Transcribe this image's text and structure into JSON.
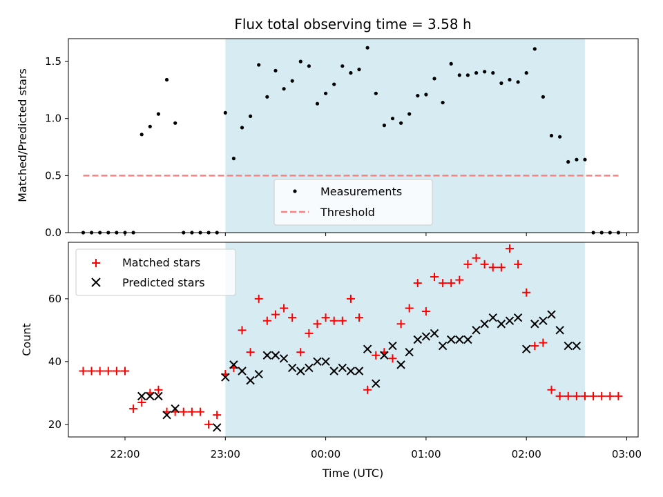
{
  "chart_data": [
    {
      "type": "scatter",
      "title": "Flux total observing time = 3.58 h",
      "xlabel": "",
      "ylabel": "Matched/Predicted stars",
      "ylim": [
        0,
        1.7
      ],
      "yticks": [
        "0.0",
        "0.5",
        "1.0",
        "1.5"
      ],
      "ytick_values": [
        0,
        0.5,
        1.0,
        1.5
      ],
      "grid": false,
      "legend_position": "lower-center",
      "shaded_span": {
        "start": "23:00",
        "end": "02:35",
        "color": "#add8e6"
      },
      "series": [
        {
          "name": "Measurements",
          "marker": "dot",
          "color": "#000000",
          "x": [
            "21:35",
            "21:40",
            "21:45",
            "21:50",
            "21:55",
            "22:00",
            "22:05",
            "22:10",
            "22:15",
            "22:20",
            "22:25",
            "22:30",
            "22:35",
            "22:40",
            "22:45",
            "22:50",
            "22:55",
            "23:00",
            "23:05",
            "23:10",
            "23:15",
            "23:20",
            "23:25",
            "23:30",
            "23:35",
            "23:40",
            "23:45",
            "23:50",
            "23:55",
            "00:00",
            "00:05",
            "00:10",
            "00:15",
            "00:20",
            "00:25",
            "00:30",
            "00:35",
            "00:40",
            "00:45",
            "00:50",
            "00:55",
            "01:00",
            "01:05",
            "01:10",
            "01:15",
            "01:20",
            "01:25",
            "01:30",
            "01:35",
            "01:40",
            "01:45",
            "01:50",
            "01:55",
            "02:00",
            "02:05",
            "02:10",
            "02:15",
            "02:20",
            "02:25",
            "02:30",
            "02:35",
            "02:40",
            "02:45",
            "02:50",
            "02:55"
          ],
          "y": [
            0,
            0,
            0,
            0,
            0,
            0,
            0,
            0.86,
            0.93,
            1.04,
            1.34,
            0.96,
            0,
            0,
            0,
            0,
            0,
            1.05,
            0.65,
            0.92,
            1.02,
            1.47,
            1.19,
            1.42,
            1.26,
            1.33,
            1.5,
            1.46,
            1.13,
            1.22,
            1.3,
            1.46,
            1.4,
            1.43,
            1.62,
            1.22,
            0.94,
            1.0,
            0.96,
            1.04,
            1.2,
            1.21,
            1.35,
            1.14,
            1.48,
            1.38,
            1.38,
            1.4,
            1.41,
            1.4,
            1.31,
            1.34,
            1.32,
            1.4,
            1.61,
            1.19,
            0.85,
            0.84,
            0.62,
            0.64,
            0.64,
            0,
            0,
            0,
            0
          ]
        },
        {
          "name": "Threshold",
          "marker": "dashed-line",
          "color": "#ff7f7f",
          "x": [
            "21:35",
            "02:55"
          ],
          "y": [
            0.5,
            0.5
          ]
        }
      ]
    },
    {
      "type": "scatter",
      "title": "",
      "xlabel": "Time (UTC)",
      "ylabel": "Count",
      "ylim": [
        16,
        78
      ],
      "yticks": [
        "20",
        "40",
        "60"
      ],
      "ytick_values": [
        20,
        40,
        60
      ],
      "xticks": [
        "22:00",
        "23:00",
        "00:00",
        "01:00",
        "02:00",
        "03:00"
      ],
      "xtick_values": [
        "22:00",
        "23:00",
        "00:00",
        "01:00",
        "02:00",
        "03:00"
      ],
      "grid": false,
      "legend_position": "upper-left",
      "shaded_span": {
        "start": "23:00",
        "end": "02:35",
        "color": "#add8e6"
      },
      "series": [
        {
          "name": "Matched stars",
          "marker": "plus",
          "color": "#ff0000",
          "x": [
            "21:35",
            "21:40",
            "21:45",
            "21:50",
            "21:55",
            "22:00",
            "22:05",
            "22:10",
            "22:15",
            "22:20",
            "22:25",
            "22:30",
            "22:35",
            "22:40",
            "22:45",
            "22:50",
            "22:55",
            "23:00",
            "23:05",
            "23:10",
            "23:15",
            "23:20",
            "23:25",
            "23:30",
            "23:35",
            "23:40",
            "23:45",
            "23:50",
            "23:55",
            "00:00",
            "00:05",
            "00:10",
            "00:15",
            "00:20",
            "00:25",
            "00:30",
            "00:35",
            "00:40",
            "00:45",
            "00:50",
            "00:55",
            "01:00",
            "01:05",
            "01:10",
            "01:15",
            "01:20",
            "01:25",
            "01:30",
            "01:35",
            "01:40",
            "01:45",
            "01:50",
            "01:55",
            "02:00",
            "02:05",
            "02:10",
            "02:15",
            "02:20",
            "02:25",
            "02:30",
            "02:35",
            "02:40",
            "02:45",
            "02:50",
            "02:55"
          ],
          "y": [
            37,
            37,
            37,
            37,
            37,
            37,
            25,
            27,
            30,
            31,
            24,
            24,
            24,
            24,
            24,
            20,
            23,
            36,
            38,
            50,
            43,
            60,
            53,
            55,
            57,
            54,
            43,
            49,
            52,
            54,
            53,
            53,
            60,
            54,
            31,
            42,
            43,
            41,
            52,
            57,
            65,
            56,
            67,
            65,
            65,
            66,
            71,
            73,
            71,
            70,
            70,
            76,
            71,
            62,
            45,
            46,
            31,
            29,
            29,
            29,
            29,
            29,
            29,
            29,
            29
          ]
        },
        {
          "name": "Predicted stars",
          "marker": "x",
          "color": "#000000",
          "x": [
            "22:10",
            "22:15",
            "22:20",
            "22:25",
            "22:30",
            "22:55",
            "23:00",
            "23:05",
            "23:10",
            "23:15",
            "23:20",
            "23:25",
            "23:30",
            "23:35",
            "23:40",
            "23:45",
            "23:50",
            "23:55",
            "00:00",
            "00:05",
            "00:10",
            "00:15",
            "00:20",
            "00:25",
            "00:30",
            "00:35",
            "00:40",
            "00:45",
            "00:50",
            "00:55",
            "01:00",
            "01:05",
            "01:10",
            "01:15",
            "01:20",
            "01:25",
            "01:30",
            "01:35",
            "01:40",
            "01:45",
            "01:50",
            "01:55",
            "02:00",
            "02:05",
            "02:10",
            "02:15",
            "02:20",
            "02:25",
            "02:30"
          ],
          "y": [
            29,
            29,
            29,
            23,
            25,
            19,
            35,
            39,
            37,
            34,
            36,
            42,
            42,
            41,
            38,
            37,
            38,
            40,
            40,
            37,
            38,
            37,
            37,
            44,
            33,
            42,
            45,
            39,
            43,
            47,
            48,
            49,
            45,
            47,
            47,
            47,
            50,
            52,
            54,
            52,
            53,
            54,
            44,
            52,
            53,
            55,
            50,
            45,
            45
          ]
        }
      ]
    }
  ]
}
